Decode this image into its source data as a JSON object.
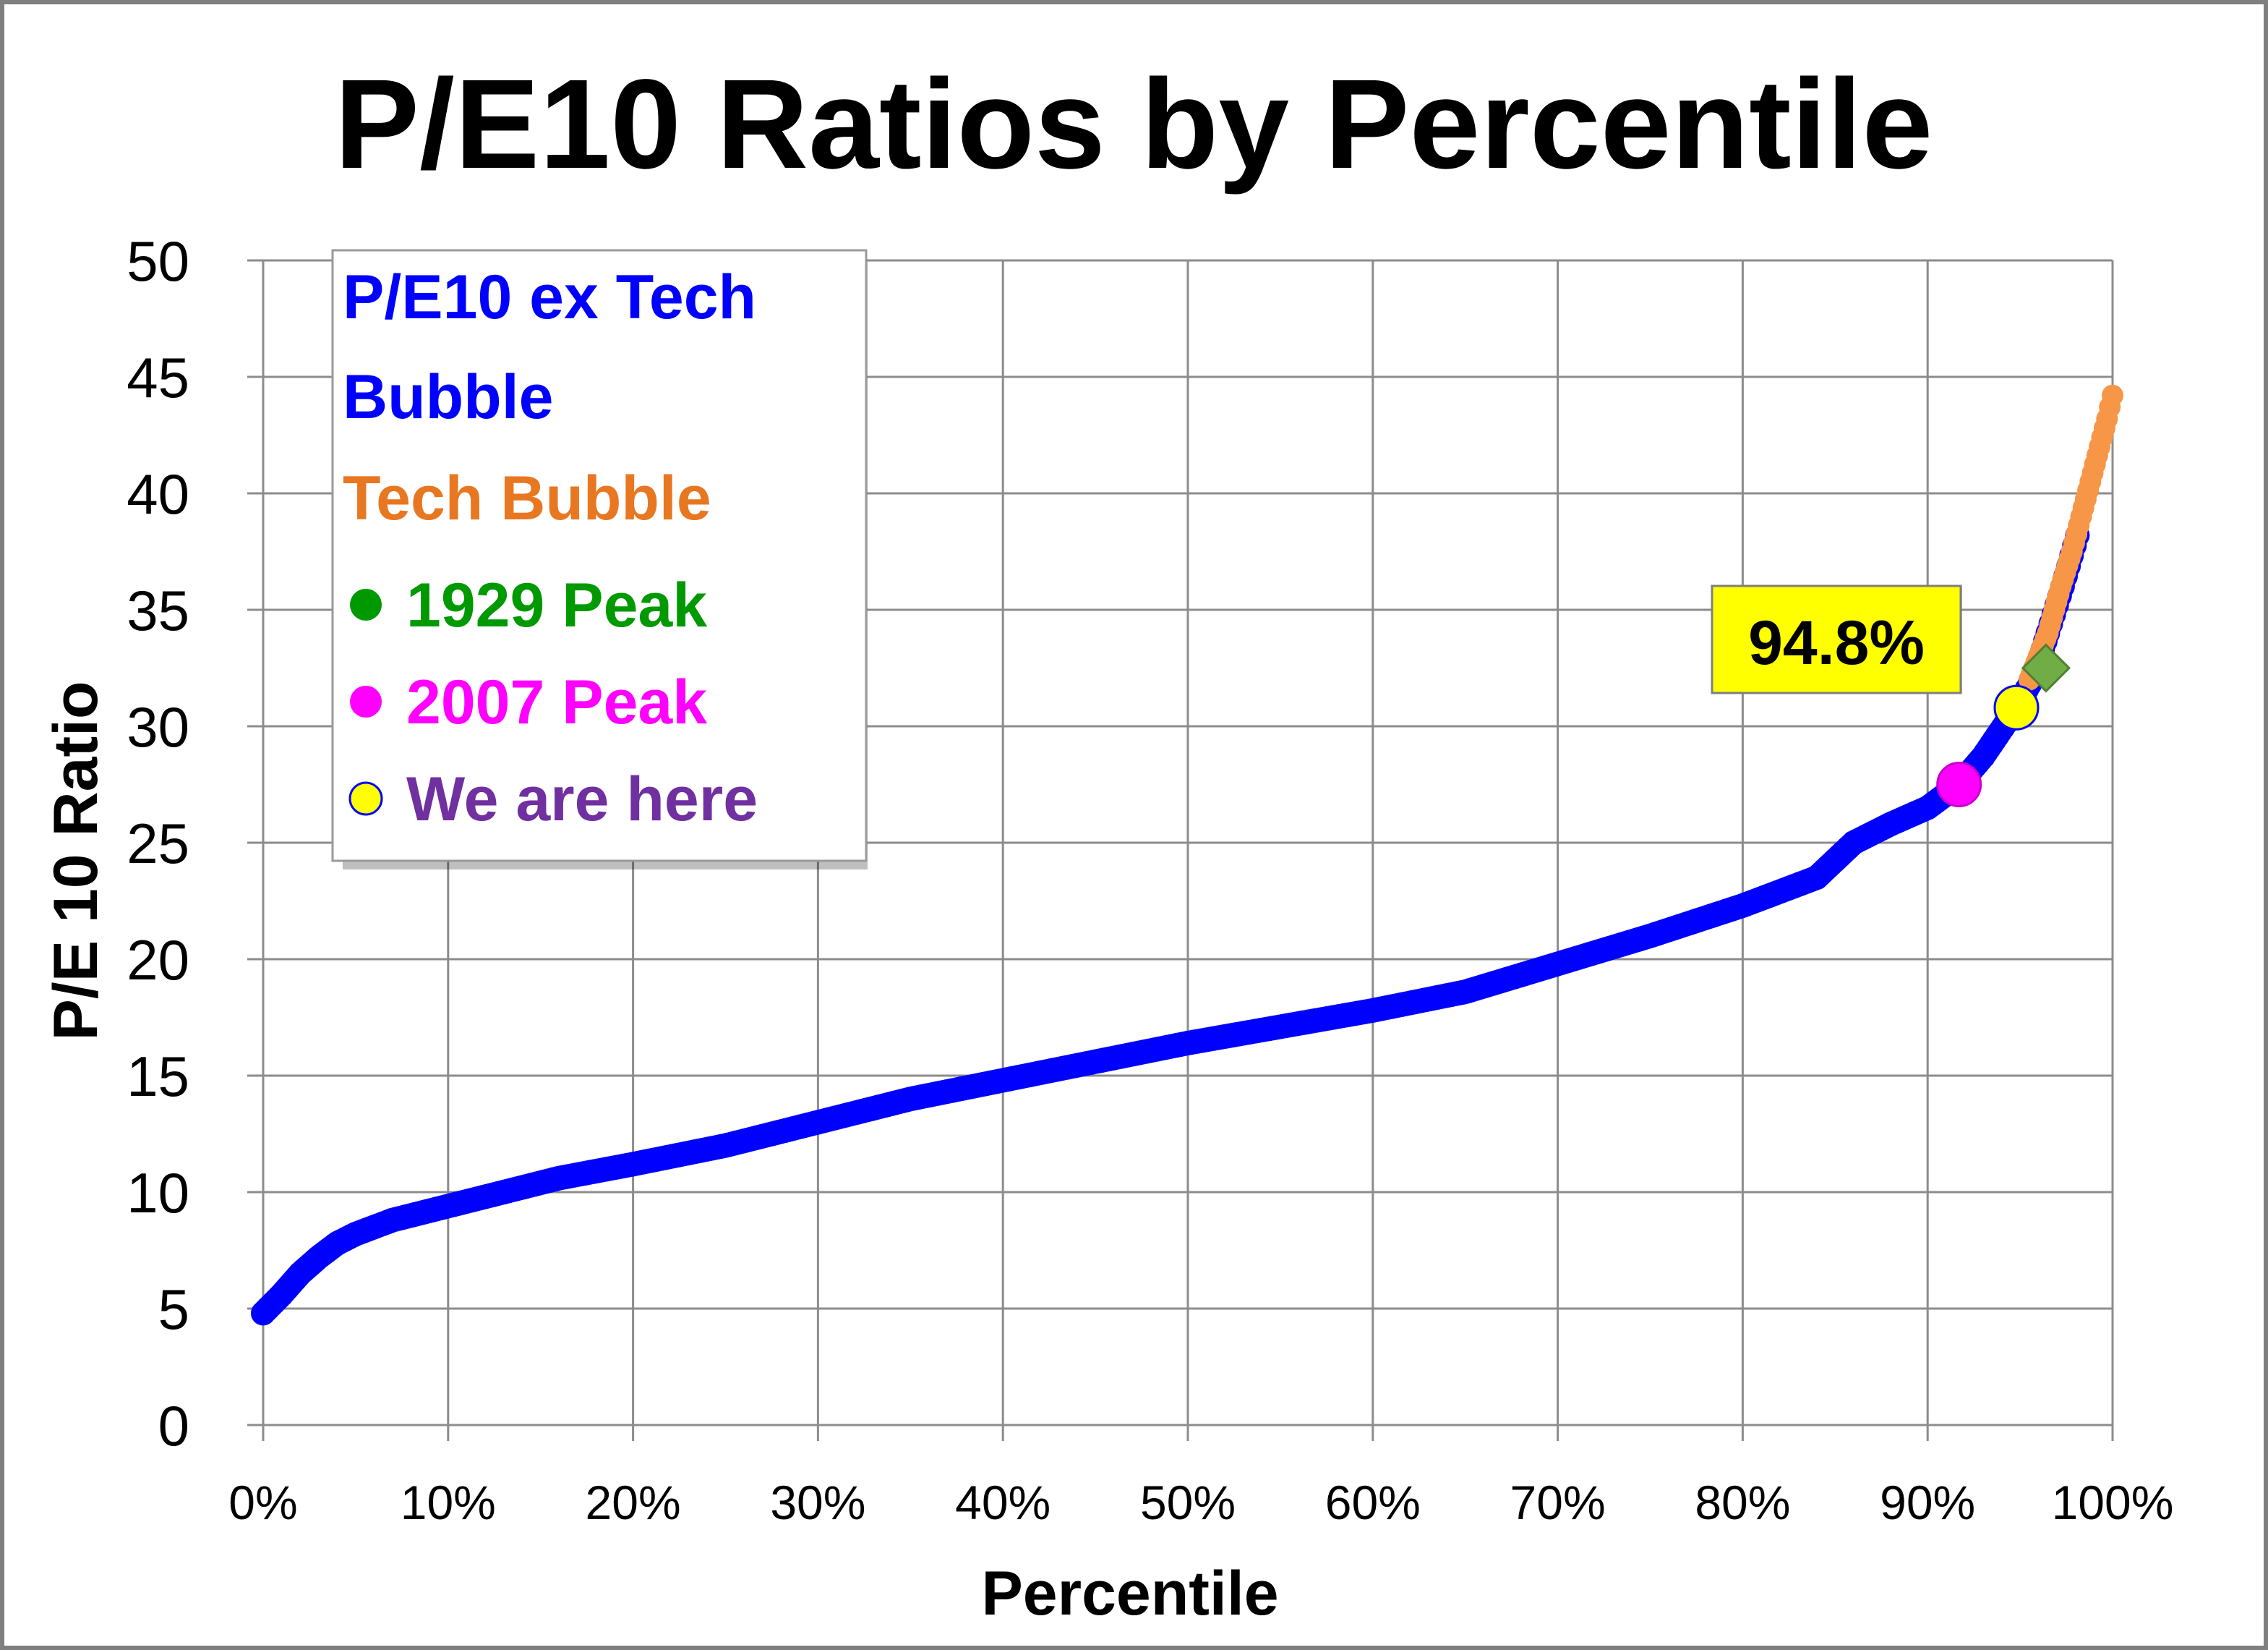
{
  "chart_data": {
    "type": "scatter",
    "title": "P/E10 Ratios by Percentile",
    "xlabel": "Percentile",
    "ylabel": "P/E 10 Ratio",
    "xlim": [
      0,
      100
    ],
    "ylim": [
      0,
      50
    ],
    "grid": true,
    "y_ticks": [
      "0",
      "5",
      "10",
      "15",
      "20",
      "25",
      "30",
      "35",
      "40",
      "45",
      "50"
    ],
    "x_ticks": [
      "0%",
      "10%",
      "20%",
      "30%",
      "40%",
      "50%",
      "60%",
      "70%",
      "80%",
      "90%",
      "100%"
    ],
    "legend_position": "top-left",
    "series": [
      {
        "name": "P/E10 ex Tech Bubble",
        "color": "#0000FF",
        "curve": [
          [
            0,
            4.8
          ],
          [
            1,
            5.6
          ],
          [
            2,
            6.5
          ],
          [
            3,
            7.2
          ],
          [
            4,
            7.8
          ],
          [
            5,
            8.2
          ],
          [
            7,
            8.8
          ],
          [
            10,
            9.4
          ],
          [
            13,
            10.0
          ],
          [
            16,
            10.6
          ],
          [
            20,
            11.2
          ],
          [
            25,
            12.0
          ],
          [
            30,
            13.0
          ],
          [
            35,
            14.0
          ],
          [
            40,
            14.8
          ],
          [
            45,
            15.6
          ],
          [
            50,
            16.4
          ],
          [
            55,
            17.1
          ],
          [
            60,
            17.8
          ],
          [
            65,
            18.6
          ],
          [
            70,
            19.8
          ],
          [
            75,
            21.0
          ],
          [
            80,
            22.3
          ],
          [
            84,
            23.5
          ],
          [
            86,
            25.0
          ],
          [
            88,
            25.8
          ],
          [
            90,
            26.5
          ],
          [
            91.7,
            27.5
          ],
          [
            93,
            28.7
          ],
          [
            94.8,
            30.8
          ],
          [
            95.8,
            32.2
          ],
          [
            96.5,
            34.0
          ],
          [
            97.3,
            36.0
          ],
          [
            98.1,
            38.2
          ]
        ]
      },
      {
        "name": "Tech Bubble",
        "color": "#F79646",
        "curve": [
          [
            95.5,
            32.0
          ],
          [
            96.5,
            34.0
          ],
          [
            97.2,
            36.0
          ],
          [
            97.8,
            37.5
          ],
          [
            98.3,
            39.0
          ],
          [
            98.8,
            40.5
          ],
          [
            99.3,
            42.0
          ],
          [
            99.7,
            43.2
          ],
          [
            100,
            44.2
          ]
        ]
      }
    ],
    "markers": [
      {
        "name": "1929 Peak",
        "x": 96.4,
        "y": 32.5,
        "color": "#70AD47",
        "shape": "diamond"
      },
      {
        "name": "2007 Peak",
        "x": 91.7,
        "y": 27.5,
        "color": "#FF00FF",
        "shape": "circle"
      },
      {
        "name": "We are here",
        "x": 94.8,
        "y": 30.8,
        "color": "#FFFF00",
        "shape": "circle"
      }
    ],
    "callout": {
      "text": "94.8%",
      "background": "#FFFF00"
    },
    "legend_entries": [
      {
        "text": "P/E10 ex Tech",
        "color": "#0000FF"
      },
      {
        "text": "Bubble",
        "color": "#0000FF"
      },
      {
        "text": "Tech Bubble",
        "color": "#E87722"
      },
      {
        "text": "1929 Peak",
        "color": "#009900",
        "marker_color": "#009900"
      },
      {
        "text": "2007 Peak",
        "color": "#FF00FF",
        "marker_color": "#FF00FF"
      },
      {
        "text": "We are here",
        "color": "#7030A0",
        "marker_color": "#FFFF00"
      }
    ]
  }
}
